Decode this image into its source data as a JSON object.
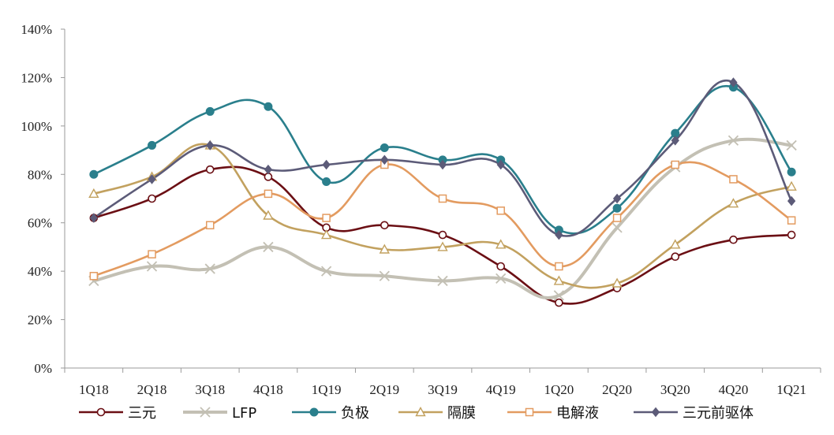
{
  "chart_data": {
    "type": "line",
    "title": "",
    "xlabel": "",
    "ylabel": "",
    "ylim": [
      0,
      140
    ],
    "y_ticks": [
      "0%",
      "20%",
      "40%",
      "60%",
      "80%",
      "100%",
      "120%",
      "140%"
    ],
    "y_tick_values": [
      0,
      20,
      40,
      60,
      80,
      100,
      120,
      140
    ],
    "grid": false,
    "legend_position": "bottom",
    "categories": [
      "1Q18",
      "2Q18",
      "3Q18",
      "4Q18",
      "1Q19",
      "2Q19",
      "3Q19",
      "4Q19",
      "1Q20",
      "2Q20",
      "3Q20",
      "4Q20",
      "1Q21"
    ],
    "series": [
      {
        "name": "三元",
        "color": "#6b0f14",
        "marker": "circle-open",
        "values": [
          62,
          70,
          82,
          79,
          58,
          59,
          55,
          42,
          27,
          33,
          46,
          53,
          55
        ]
      },
      {
        "name": "LFP",
        "color": "#c3c0b4",
        "marker": "x",
        "values": [
          36,
          42,
          41,
          50,
          40,
          38,
          36,
          37,
          30,
          58,
          83,
          94,
          92
        ]
      },
      {
        "name": "负极",
        "color": "#2a7f8c",
        "marker": "circle-filled",
        "values": [
          80,
          92,
          106,
          108,
          77,
          91,
          86,
          86,
          57,
          66,
          97,
          116,
          81
        ]
      },
      {
        "name": "隔膜",
        "color": "#c2a15f",
        "marker": "triangle-open",
        "values": [
          72,
          79,
          92,
          63,
          55,
          49,
          50,
          51,
          36,
          35,
          51,
          68,
          75
        ]
      },
      {
        "name": "电解液",
        "color": "#e39b60",
        "marker": "square-open",
        "values": [
          38,
          47,
          59,
          72,
          62,
          84,
          70,
          65,
          42,
          62,
          84,
          78,
          61
        ]
      },
      {
        "name": "三元前驱体",
        "color": "#5c5b78",
        "marker": "diamond",
        "values": [
          62,
          78,
          92,
          82,
          84,
          86,
          84,
          84,
          55,
          70,
          94,
          118,
          69
        ]
      }
    ]
  }
}
